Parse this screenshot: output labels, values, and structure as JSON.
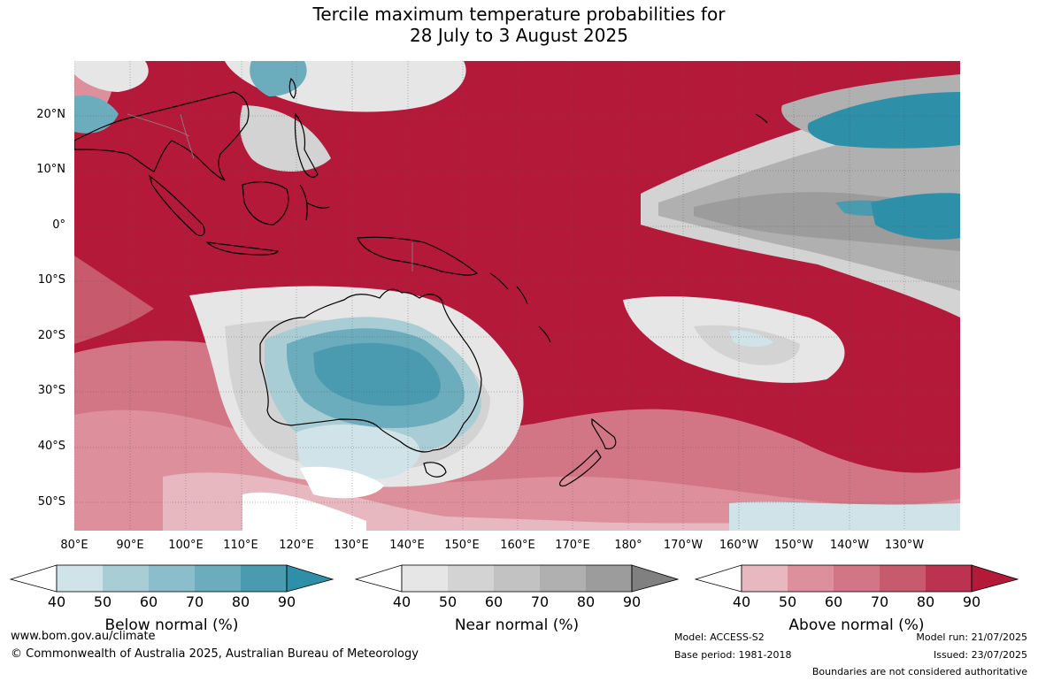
{
  "title": {
    "line1": "Tercile maximum temperature probabilities for",
    "line2": "28 July to 3 August 2025"
  },
  "map": {
    "lat_labels": [
      "20°N",
      "10°N",
      "0°",
      "10°S",
      "20°S",
      "30°S",
      "40°S",
      "50°S"
    ],
    "lon_labels": [
      "80°E",
      "90°E",
      "100°E",
      "110°E",
      "120°E",
      "130°E",
      "140°E",
      "150°E",
      "160°E",
      "170°E",
      "180°",
      "170°W",
      "160°W",
      "150°W",
      "140°W",
      "130°W"
    ],
    "lon_range": [
      80,
      240
    ],
    "lat_range": [
      -55,
      30
    ],
    "colors": {
      "ocean_above": "#b5193a",
      "land_outline": "#000000"
    }
  },
  "colorbars": [
    {
      "title": "Below normal (%)",
      "ticks": [
        "40",
        "50",
        "60",
        "70",
        "80",
        "90"
      ],
      "colors": [
        "#cfe3e8",
        "#a9cdd5",
        "#8bbdcb",
        "#6cadbd",
        "#4a9bb0",
        "#2d8fa8"
      ]
    },
    {
      "title": "Near normal (%)",
      "ticks": [
        "40",
        "50",
        "60",
        "70",
        "80",
        "90"
      ],
      "colors": [
        "#e6e6e6",
        "#d3d3d3",
        "#c2c2c2",
        "#b0b0b0",
        "#9c9c9c",
        "#808080"
      ]
    },
    {
      "title": "Above normal (%)",
      "ticks": [
        "40",
        "50",
        "60",
        "70",
        "80",
        "90"
      ],
      "colors": [
        "#e8b8c1",
        "#dd8f9c",
        "#d27585",
        "#c75a6d",
        "#bb3350",
        "#b5193a"
      ]
    }
  ],
  "footer": {
    "website": "www.bom.gov.au/climate",
    "copyright": "© Commonwealth of Australia 2025, Australian Bureau of Meteorology",
    "model": "Model: ACCESS-S2",
    "base_period": "Base period: 1981-2018",
    "model_run": "Model run: 21/07/2025",
    "issued": "Issued: 23/07/2025",
    "disclaimer": "Boundaries are not considered authoritative"
  }
}
